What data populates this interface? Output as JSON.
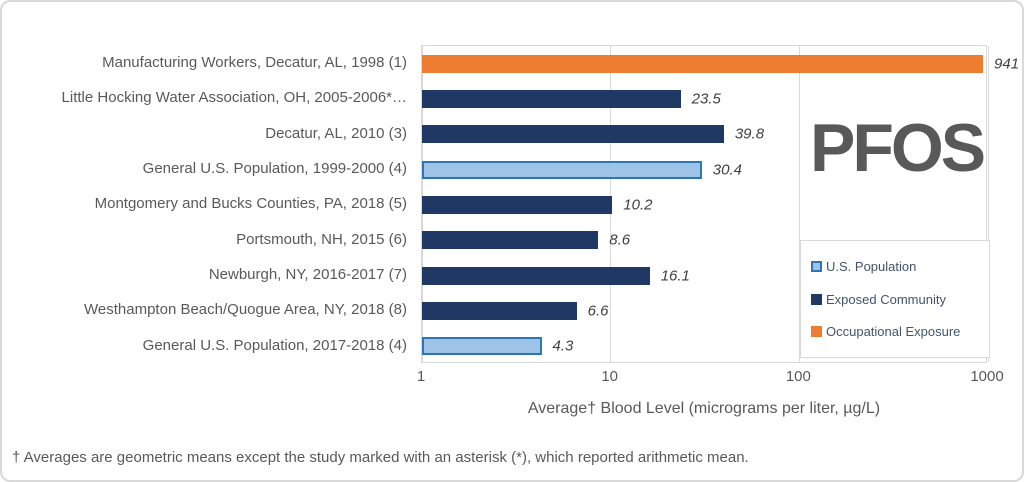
{
  "colors": {
    "background": "#FFFFFF",
    "frame_border": "#D9D9D9",
    "gridline": "#D9D9D9",
    "axis_text": "#595959",
    "value_label_text": "#404040",
    "annotation_text": "#595959"
  },
  "chart_data": {
    "type": "bar",
    "orientation": "horizontal",
    "x_scale": "log10",
    "x_range": [
      1,
      1000
    ],
    "x_ticks": [
      1,
      10,
      100,
      1000
    ],
    "grid": true,
    "xlabel": "Average† Blood Level (micrograms per liter, µg/L)",
    "annotation": "PFOS",
    "footnote": "† Averages are geometric means except the study marked with an asterisk (*), which reported arithmetic mean.",
    "series": {
      "us_population": {
        "name": "U.S. Population",
        "fill": "#9DC3E6",
        "border": "#2E75B6"
      },
      "exposed_community": {
        "name": "Exposed Community",
        "fill": "#1F3864",
        "border": "#1F3864"
      },
      "occupational_exposure": {
        "name": "Occupational Exposure",
        "fill": "#ED7D31",
        "border": "#ED7D31"
      }
    },
    "legend": {
      "position": "right",
      "entries": [
        "us_population",
        "exposed_community",
        "occupational_exposure"
      ]
    },
    "rows": [
      {
        "label": "Manufacturing Workers, Decatur, AL, 1998 (1)",
        "value": 941,
        "value_label": "941",
        "series": "occupational_exposure"
      },
      {
        "label": "Little Hocking Water Association, OH, 2005-2006*…",
        "value": 23.5,
        "value_label": "23.5",
        "series": "exposed_community"
      },
      {
        "label": "Decatur, AL, 2010 (3)",
        "value": 39.8,
        "value_label": "39.8",
        "series": "exposed_community"
      },
      {
        "label": "General U.S. Population, 1999-2000 (4)",
        "value": 30.4,
        "value_label": "30.4",
        "series": "us_population"
      },
      {
        "label": "Montgomery and Bucks Counties, PA, 2018 (5)",
        "value": 10.2,
        "value_label": "10.2",
        "series": "exposed_community"
      },
      {
        "label": "Portsmouth, NH, 2015 (6)",
        "value": 8.6,
        "value_label": "8.6",
        "series": "exposed_community"
      },
      {
        "label": "Newburgh, NY, 2016-2017 (7)",
        "value": 16.1,
        "value_label": "16.1",
        "series": "exposed_community"
      },
      {
        "label": "Westhampton Beach/Quogue Area, NY, 2018 (8)",
        "value": 6.6,
        "value_label": "6.6",
        "series": "exposed_community"
      },
      {
        "label": "General U.S. Population, 2017-2018 (4)",
        "value": 4.3,
        "value_label": "4.3",
        "series": "us_population"
      }
    ]
  }
}
